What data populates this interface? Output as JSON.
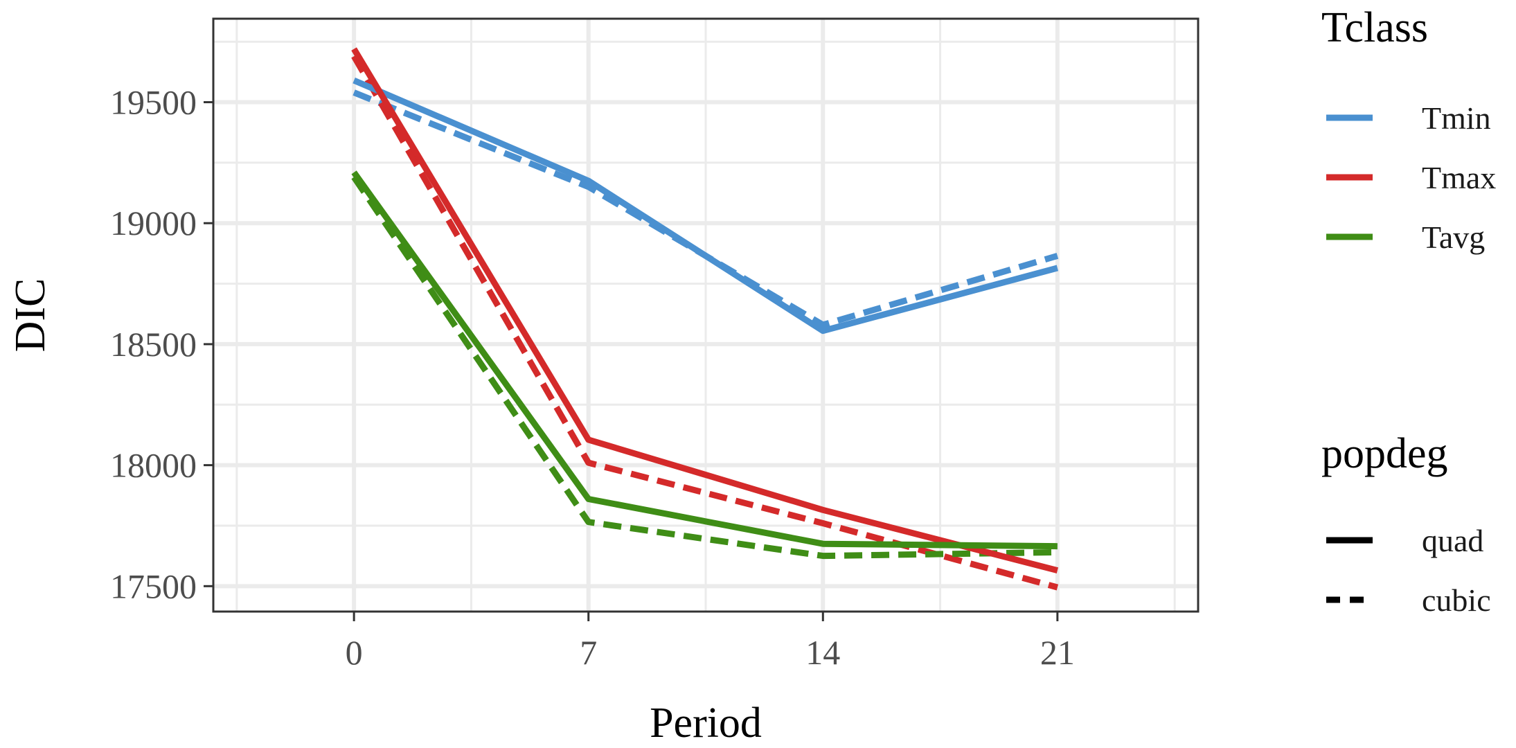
{
  "chart_data": {
    "type": "line",
    "xlabel": "Period",
    "ylabel": "DIC",
    "x": [
      0,
      7,
      14,
      21
    ],
    "xlim": [
      -4.2,
      25.2
    ],
    "ylim": [
      17395,
      19845
    ],
    "xticks": [
      "0",
      "7",
      "14",
      "21"
    ],
    "yticks": [
      "17500",
      "18000",
      "18500",
      "19000",
      "19500"
    ],
    "grid": true,
    "series": [
      {
        "Tclass": "Tmin",
        "popdeg": "quad",
        "color": "#4A90D0",
        "dash": "solid",
        "values": [
          19590,
          19175,
          18555,
          18815
        ]
      },
      {
        "Tclass": "Tmin",
        "popdeg": "cubic",
        "color": "#4A90D0",
        "dash": "dashed",
        "values": [
          19540,
          19150,
          18580,
          18865
        ]
      },
      {
        "Tclass": "Tmax",
        "popdeg": "quad",
        "color": "#D42A2A",
        "dash": "solid",
        "values": [
          19720,
          18105,
          17815,
          17565
        ]
      },
      {
        "Tclass": "Tmax",
        "popdeg": "cubic",
        "color": "#D42A2A",
        "dash": "dashed",
        "values": [
          19690,
          18010,
          17760,
          17495
        ]
      },
      {
        "Tclass": "Tavg",
        "popdeg": "quad",
        "color": "#3F8D16",
        "dash": "solid",
        "values": [
          19210,
          17860,
          17675,
          17665
        ]
      },
      {
        "Tclass": "Tavg",
        "popdeg": "cubic",
        "color": "#3F8D16",
        "dash": "dashed",
        "values": [
          19190,
          17765,
          17625,
          17640
        ]
      }
    ],
    "legend": {
      "placement": "right",
      "color_title": "Tclass",
      "color_entries": [
        {
          "label": "Tmin",
          "color": "#4A90D0"
        },
        {
          "label": "Tmax",
          "color": "#D42A2A"
        },
        {
          "label": "Tavg",
          "color": "#3F8D16"
        }
      ],
      "linetype_title": "popdeg",
      "linetype_entries": [
        {
          "label": "quad",
          "dash": "solid"
        },
        {
          "label": "cubic",
          "dash": "dashed"
        }
      ]
    }
  }
}
